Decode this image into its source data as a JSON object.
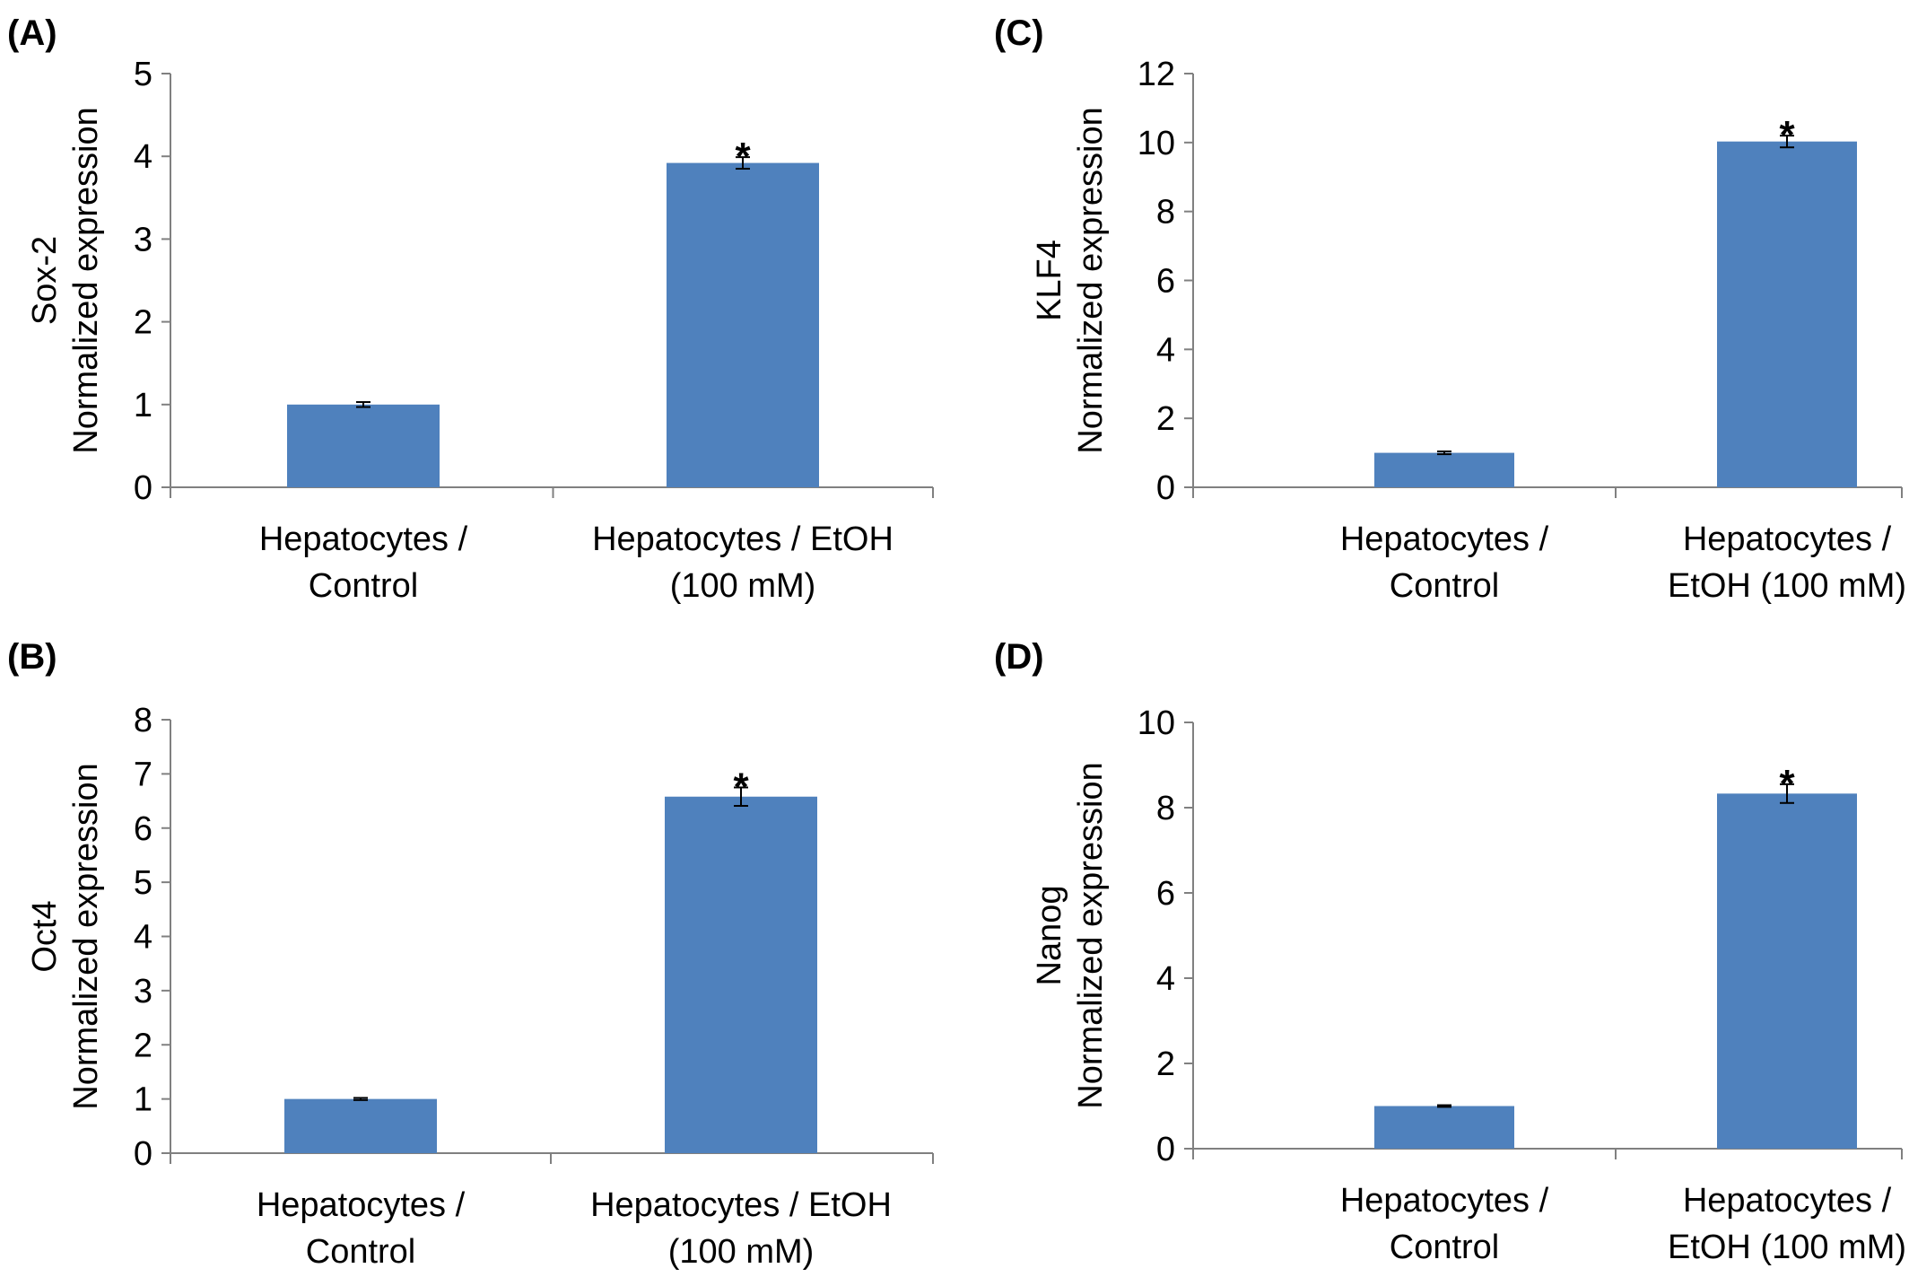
{
  "colors": {
    "bar": "#4f81bd",
    "axis": "#808080",
    "errorbar": "#000000"
  },
  "chart_data": [
    {
      "panel": "(A)",
      "type": "bar",
      "categories": [
        [
          "Hepatocytes /",
          "Control"
        ],
        [
          "Hepatocytes / EtOH",
          "(100 mM)"
        ]
      ],
      "values": [
        1.0,
        3.92
      ],
      "errors": [
        0.03,
        0.07
      ],
      "significance": [
        "",
        "*"
      ],
      "ylabel": [
        "Sox-2",
        "Normalized expression"
      ],
      "ylim": [
        0,
        5
      ],
      "yticks": [
        0,
        1,
        2,
        3,
        4,
        5
      ]
    },
    {
      "panel": "(B)",
      "type": "bar",
      "categories": [
        [
          "Hepatocytes /",
          "Control"
        ],
        [
          "Hepatocytes / EtOH",
          "(100 mM)"
        ]
      ],
      "values": [
        1.0,
        6.58
      ],
      "errors": [
        0.02,
        0.17
      ],
      "significance": [
        "",
        "*"
      ],
      "ylabel": [
        "Oct4",
        "Normalized expression"
      ],
      "ylim": [
        0,
        8
      ],
      "yticks": [
        0,
        1,
        2,
        3,
        4,
        5,
        6,
        7,
        8
      ]
    },
    {
      "panel": "(C)",
      "type": "bar",
      "categories": [
        [
          "Hepatocytes /",
          "Control"
        ],
        [
          "Hepatocytes /",
          "EtOH (100 mM)"
        ]
      ],
      "values": [
        1.0,
        10.03
      ],
      "errors": [
        0.04,
        0.17
      ],
      "significance": [
        "",
        "*"
      ],
      "ylabel": [
        "KLF4",
        "Normalized expression"
      ],
      "ylim": [
        0,
        12
      ],
      "yticks": [
        0,
        2,
        4,
        6,
        8,
        10,
        12
      ]
    },
    {
      "panel": "(D)",
      "type": "bar",
      "categories": [
        [
          "Hepatocytes /",
          "Control"
        ],
        [
          "Hepatocytes /",
          "EtOH (100 mM)"
        ]
      ],
      "values": [
        1.0,
        8.33
      ],
      "errors": [
        0.02,
        0.22
      ],
      "significance": [
        "",
        "*"
      ],
      "ylabel": [
        "Nanog",
        "Normalized expression"
      ],
      "ylim": [
        0,
        10
      ],
      "yticks": [
        0,
        2,
        4,
        6,
        8,
        10
      ]
    }
  ]
}
